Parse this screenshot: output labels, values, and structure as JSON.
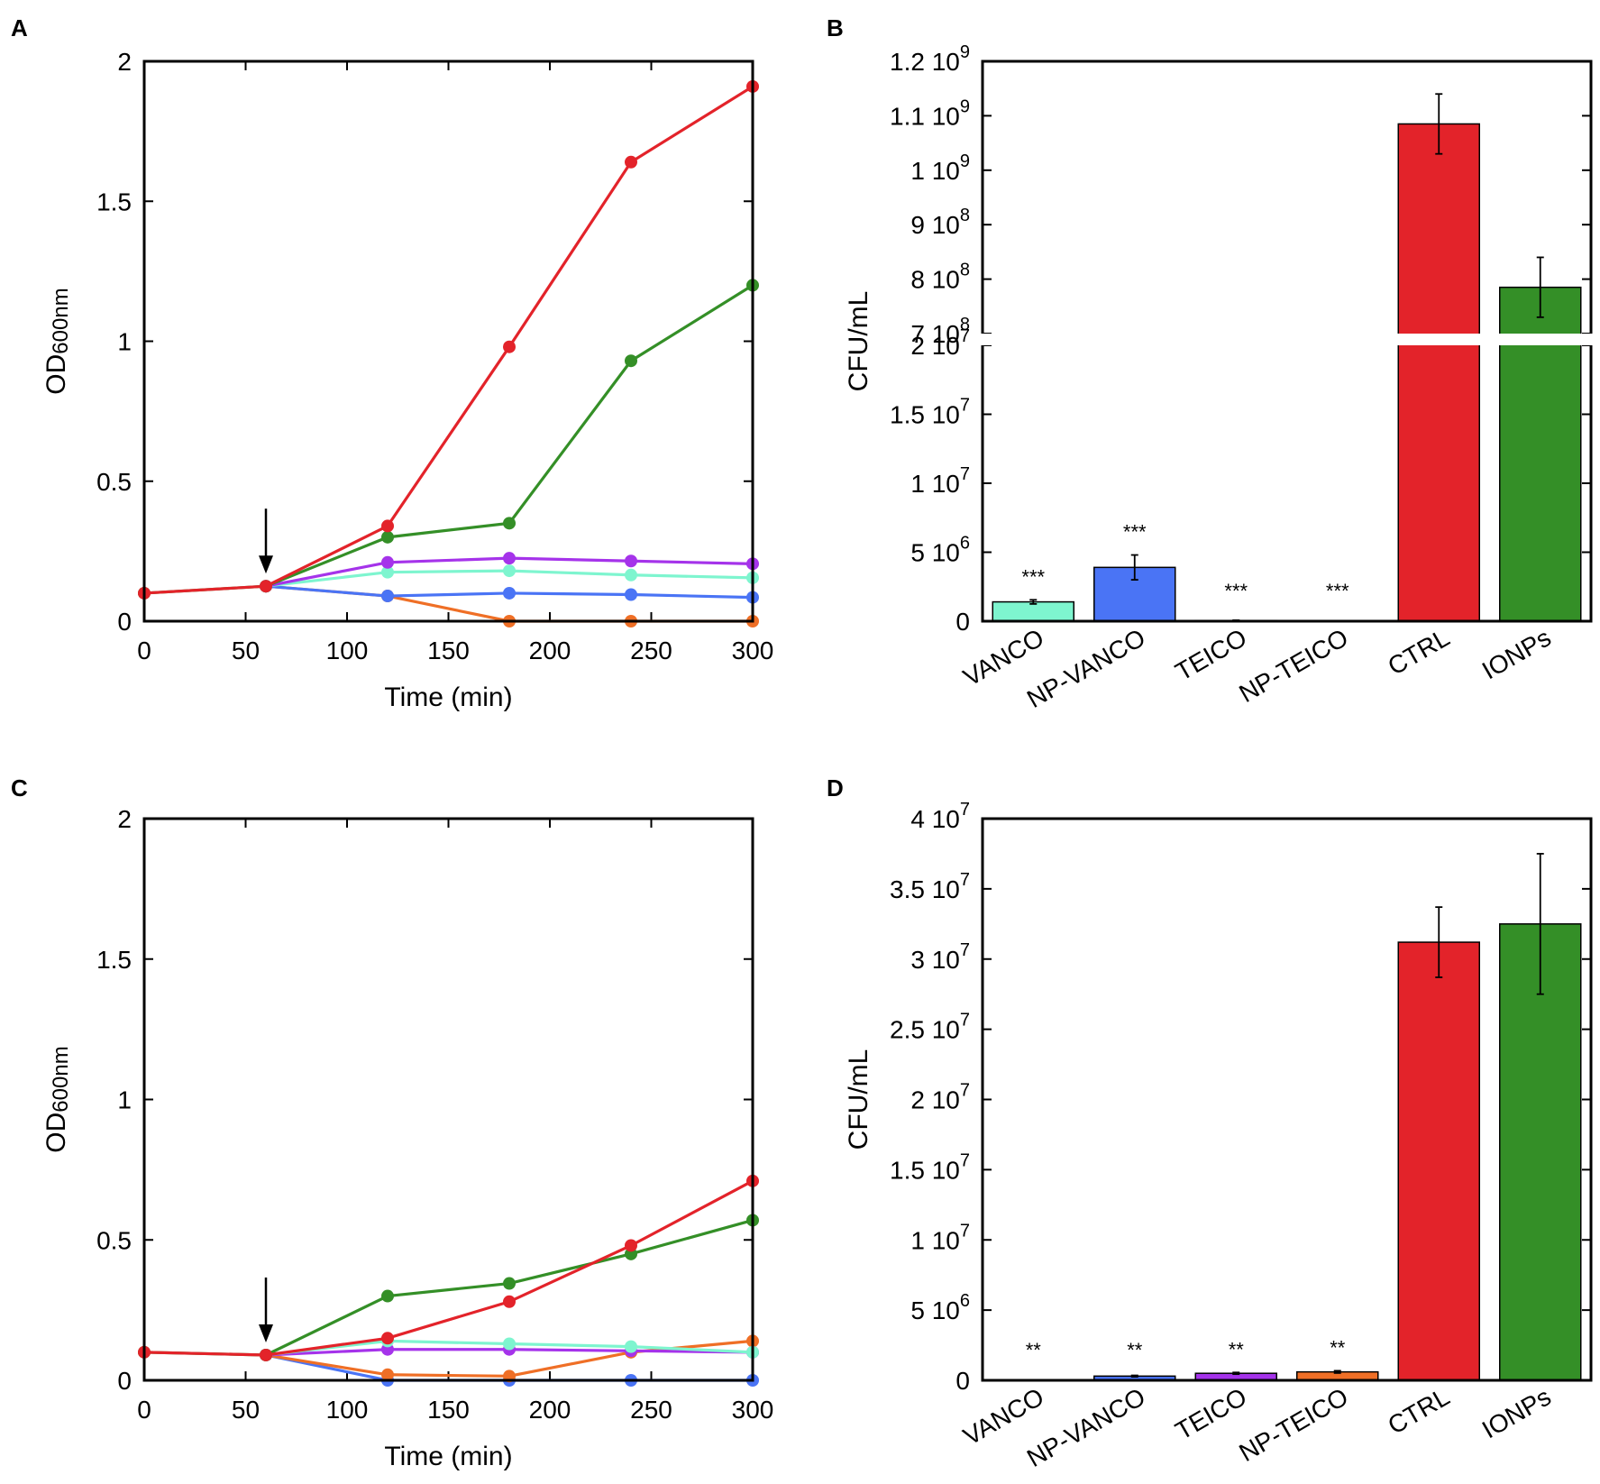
{
  "colors": {
    "VANCO": "#7ef5cf",
    "NP-VANCO": "#4a74f5",
    "TEICO": "#a533ea",
    "NP-TEICO": "#ef6f26",
    "CTRL": "#e3232a",
    "IONPs": "#348f27",
    "axis": "#000000"
  },
  "chart_data": [
    {
      "panel": "A",
      "type": "line",
      "xlabel": "Time (min)",
      "ylabel": "OD600nm",
      "ylabel_main": "OD",
      "ylabel_sub": "600nm",
      "xlim": [
        0,
        300
      ],
      "ylim": [
        0,
        2
      ],
      "xticks": [
        0,
        50,
        100,
        150,
        200,
        250,
        300
      ],
      "yticks": [
        "0",
        "0.5",
        "1",
        "1.5",
        "2"
      ],
      "ytick_values": [
        0,
        0.5,
        1,
        1.5,
        2
      ],
      "arrow_at": 60,
      "x": [
        0,
        60,
        120,
        180,
        240,
        300
      ],
      "series": [
        {
          "name": "CTRL",
          "values": [
            0.1,
            0.125,
            0.34,
            0.98,
            1.64,
            1.91
          ]
        },
        {
          "name": "IONPs",
          "values": [
            0.1,
            0.125,
            0.3,
            0.35,
            0.93,
            1.2
          ]
        },
        {
          "name": "TEICO",
          "values": [
            null,
            0.125,
            0.21,
            0.225,
            0.215,
            0.205
          ]
        },
        {
          "name": "VANCO",
          "values": [
            null,
            0.125,
            0.175,
            0.18,
            0.165,
            0.155
          ]
        },
        {
          "name": "NP-VANCO",
          "values": [
            null,
            0.125,
            0.09,
            0.1,
            0.095,
            0.085
          ]
        },
        {
          "name": "NP-TEICO",
          "values": [
            null,
            0.125,
            0.09,
            0.0,
            0.0,
            0.0
          ]
        }
      ]
    },
    {
      "panel": "B",
      "type": "bar",
      "ylabel": "CFU/mL",
      "categories": [
        "VANCO",
        "NP-VANCO",
        "TEICO",
        "NP-TEICO",
        "CTRL",
        "IONPs"
      ],
      "values": [
        1400000,
        3900000,
        50000,
        0,
        1085000000,
        785000000
      ],
      "errors": [
        150000,
        900000,
        20000,
        0,
        55000000,
        55000000
      ],
      "significance": [
        "***",
        "***",
        "***",
        "***",
        "",
        ""
      ],
      "broken_axis": true,
      "lower_ylim": [
        0,
        20000000
      ],
      "upper_ylim": [
        700000000,
        1200000000
      ],
      "lower_yticks": [
        {
          "value": 0,
          "mant": "0",
          "exp": ""
        },
        {
          "value": 5000000,
          "mant": "5 10",
          "exp": "6"
        },
        {
          "value": 10000000,
          "mant": "1 10",
          "exp": "7"
        },
        {
          "value": 15000000,
          "mant": "1.5 10",
          "exp": "7"
        },
        {
          "value": 20000000,
          "mant": "2 10",
          "exp": "7"
        }
      ],
      "upper_yticks": [
        {
          "value": 700000000,
          "mant": "7 10",
          "exp": "8"
        },
        {
          "value": 800000000,
          "mant": "8 10",
          "exp": "8"
        },
        {
          "value": 900000000,
          "mant": "9 10",
          "exp": "8"
        },
        {
          "value": 1000000000,
          "mant": "1 10",
          "exp": "9"
        },
        {
          "value": 1100000000,
          "mant": "1.1 10",
          "exp": "9"
        },
        {
          "value": 1200000000,
          "mant": "1.2 10",
          "exp": "9"
        }
      ]
    },
    {
      "panel": "C",
      "type": "line",
      "xlabel": "Time (min)",
      "ylabel": "OD600nm",
      "ylabel_main": "OD",
      "ylabel_sub": "600nm",
      "xlim": [
        0,
        300
      ],
      "ylim": [
        0,
        2
      ],
      "xticks": [
        0,
        50,
        100,
        150,
        200,
        250,
        300
      ],
      "yticks": [
        "0",
        "0.5",
        "1",
        "1.5",
        "2"
      ],
      "ytick_values": [
        0,
        0.5,
        1,
        1.5,
        2
      ],
      "arrow_at": 60,
      "x": [
        0,
        60,
        120,
        180,
        240,
        300
      ],
      "series": [
        {
          "name": "CTRL",
          "values": [
            0.1,
            0.09,
            0.15,
            0.28,
            0.48,
            0.71
          ]
        },
        {
          "name": "IONPs",
          "values": [
            0.1,
            0.09,
            0.3,
            0.345,
            0.45,
            0.57
          ]
        },
        {
          "name": "VANCO",
          "values": [
            null,
            0.09,
            0.14,
            0.13,
            0.12,
            0.1
          ]
        },
        {
          "name": "TEICO",
          "values": [
            null,
            0.09,
            0.11,
            0.11,
            0.105,
            0.1
          ]
        },
        {
          "name": "NP-TEICO",
          "values": [
            null,
            0.09,
            0.02,
            0.015,
            0.1,
            0.14
          ]
        },
        {
          "name": "NP-VANCO",
          "values": [
            null,
            0.09,
            0.0,
            0.0,
            0.0,
            0.0
          ]
        }
      ]
    },
    {
      "panel": "D",
      "type": "bar",
      "ylabel": "CFU/mL",
      "categories": [
        "VANCO",
        "NP-VANCO",
        "TEICO",
        "NP-TEICO",
        "CTRL",
        "IONPs"
      ],
      "values": [
        0,
        300000,
        500000,
        600000,
        31200000,
        32500000
      ],
      "errors": [
        0,
        50000,
        60000,
        80000,
        2500000,
        5000000
      ],
      "significance": [
        "**",
        "**",
        "**",
        "**",
        "",
        ""
      ],
      "ylim": [
        0,
        40000000
      ],
      "yticks": [
        {
          "value": 0,
          "mant": "0",
          "exp": ""
        },
        {
          "value": 5000000,
          "mant": "5 10",
          "exp": "6"
        },
        {
          "value": 10000000,
          "mant": "1 10",
          "exp": "7"
        },
        {
          "value": 15000000,
          "mant": "1.5 10",
          "exp": "7"
        },
        {
          "value": 20000000,
          "mant": "2 10",
          "exp": "7"
        },
        {
          "value": 25000000,
          "mant": "2.5 10",
          "exp": "7"
        },
        {
          "value": 30000000,
          "mant": "3 10",
          "exp": "7"
        },
        {
          "value": 35000000,
          "mant": "3.5 10",
          "exp": "7"
        },
        {
          "value": 40000000,
          "mant": "4 10",
          "exp": "7"
        }
      ]
    }
  ]
}
